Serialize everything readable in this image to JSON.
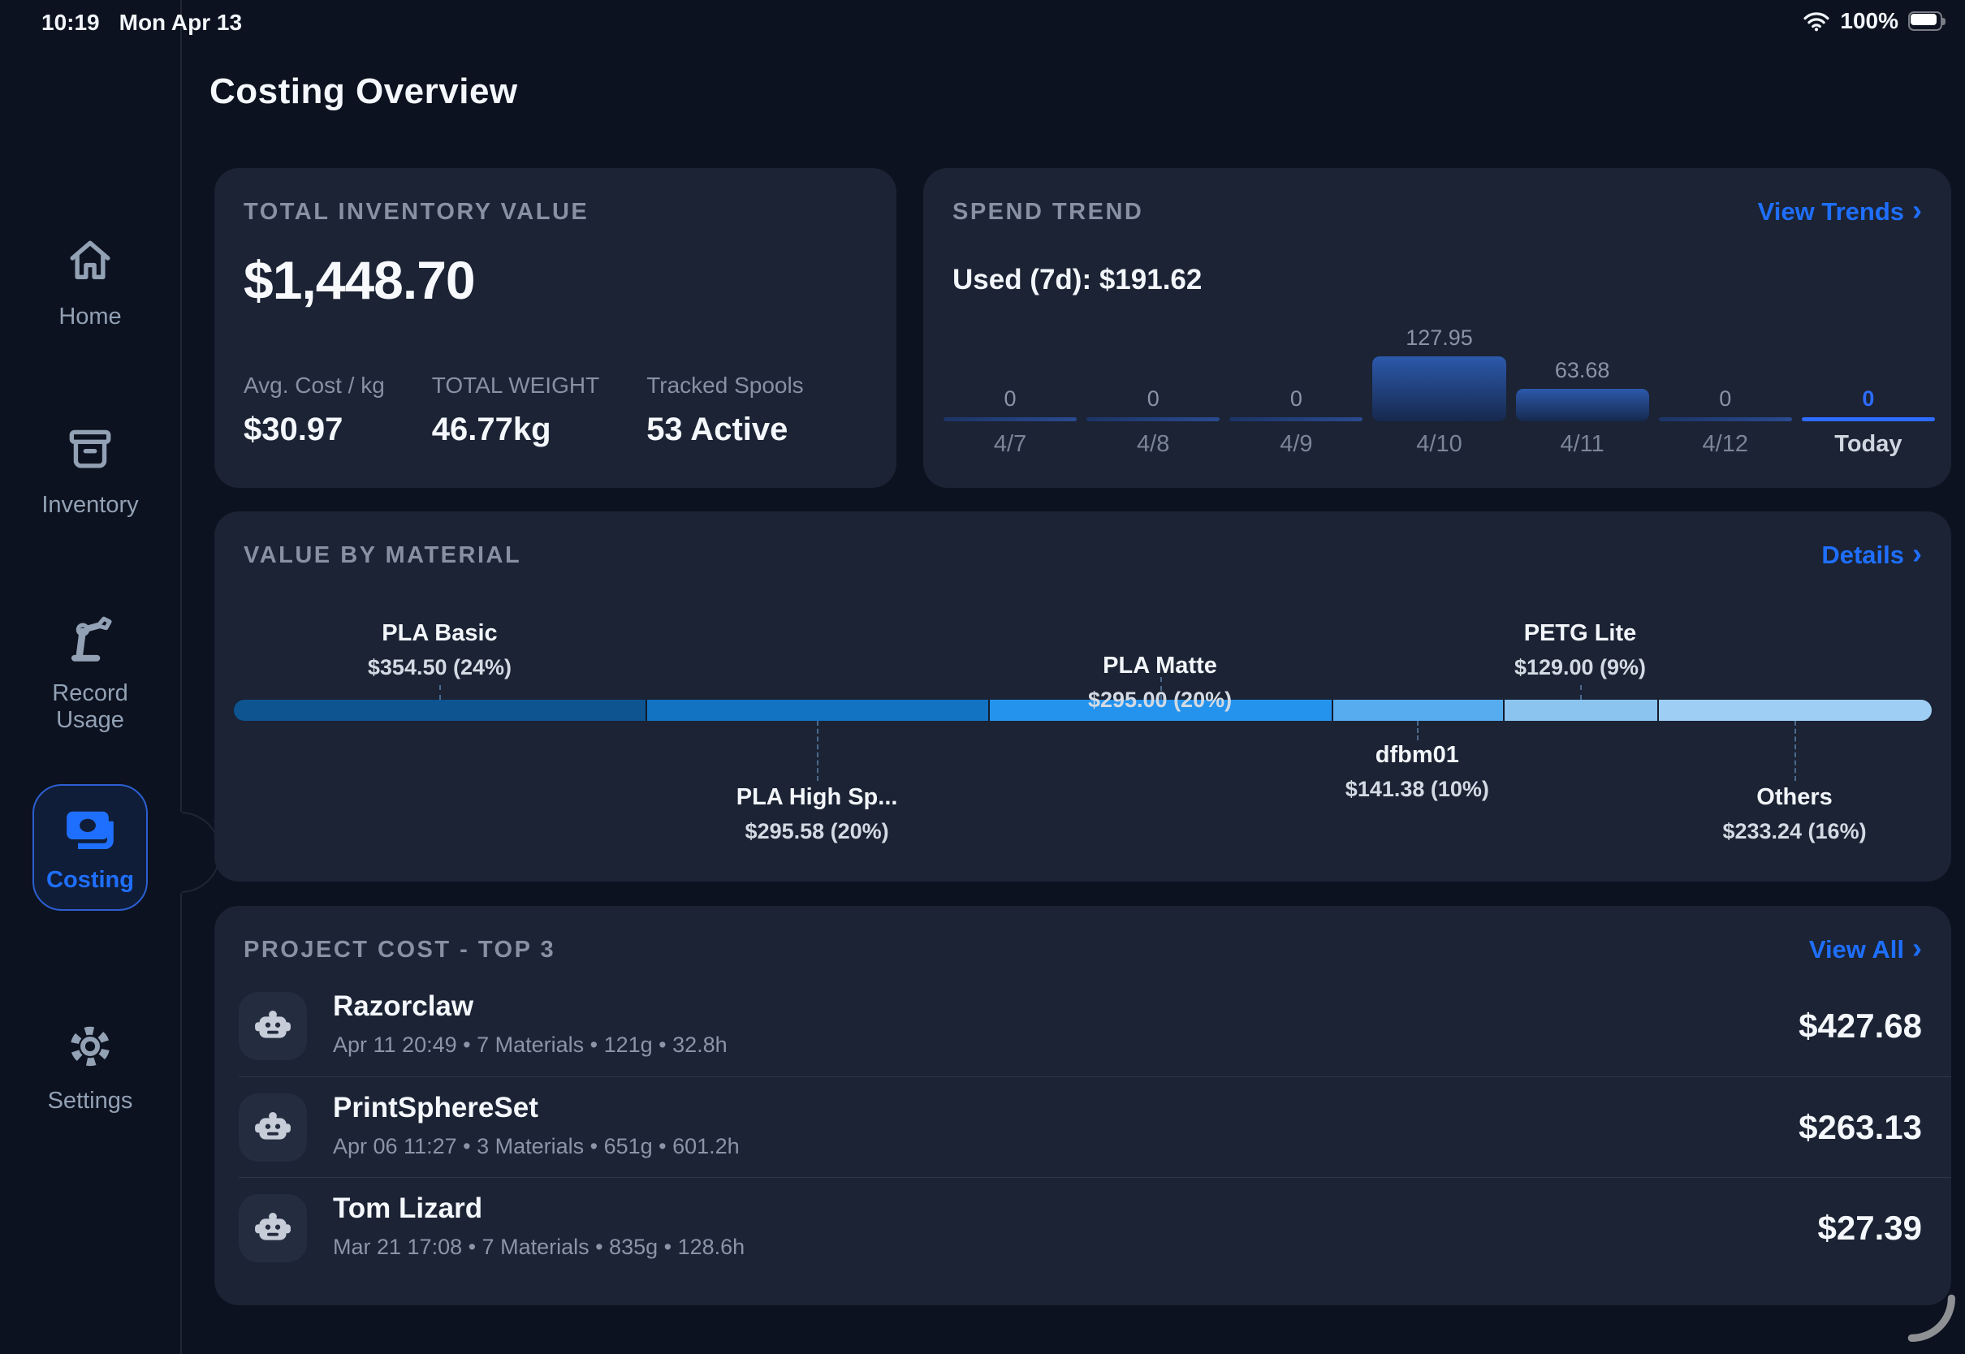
{
  "status_bar": {
    "time": "10:19",
    "date": "Mon Apr 13",
    "battery_percent": "100%"
  },
  "page_title": "Costing Overview",
  "sidebar": {
    "items": [
      {
        "id": "home",
        "label": "Home",
        "icon": "home-icon",
        "active": false
      },
      {
        "id": "inventory",
        "label": "Inventory",
        "icon": "archive-box-icon",
        "active": false
      },
      {
        "id": "record-usage",
        "label": "Record\nUsage",
        "icon": "robot-arm-icon",
        "active": false
      },
      {
        "id": "costing",
        "label": "Costing",
        "icon": "banknotes-icon",
        "active": true
      },
      {
        "id": "settings",
        "label": "Settings",
        "icon": "gear-icon",
        "active": false
      }
    ]
  },
  "cards": {
    "inventory": {
      "header": "TOTAL INVENTORY VALUE",
      "total_value": "$1,448.70",
      "stats": [
        {
          "label": "Avg. Cost / kg",
          "value": "$30.97"
        },
        {
          "label": "TOTAL WEIGHT",
          "value": "46.77kg"
        },
        {
          "label": "Tracked Spools",
          "value": "53 Active"
        }
      ]
    },
    "spend": {
      "header": "SPEND TREND",
      "link_label": "View Trends",
      "link_chevron": "›",
      "used_label": "Used (7d): $191.62",
      "chart_data": {
        "type": "bar",
        "x": [
          "4/7",
          "4/8",
          "4/9",
          "4/10",
          "4/11",
          "4/12",
          "Today"
        ],
        "values": [
          0,
          0,
          0,
          127.95,
          63.68,
          0,
          0
        ],
        "value_labels": [
          "0",
          "0",
          "0",
          "127.95",
          "63.68",
          "0",
          "0"
        ],
        "highlight_index": 6,
        "ylim": [
          0,
          130
        ],
        "bar_gradient_top": "#2c59ab",
        "bar_gradient_bottom": "#16294e",
        "highlight_color": "#2e6bff"
      }
    },
    "material": {
      "header": "VALUE BY MATERIAL",
      "link_label": "Details",
      "link_chevron": "›",
      "chart_data": {
        "type": "stacked-bar",
        "segments": [
          {
            "name": "PLA Basic",
            "display": "$354.50 (24%)",
            "value": 354.5,
            "pct": 24,
            "color": "#0d5491",
            "label_pos": "above-far"
          },
          {
            "name": "PLA High Sp...",
            "display": "$295.58 (20%)",
            "value": 295.58,
            "pct": 20,
            "color": "#1173c2",
            "label_pos": "below-far"
          },
          {
            "name": "PLA Matte",
            "display": "$295.00 (20%)",
            "value": 295.0,
            "pct": 20,
            "color": "#2493ee",
            "label_pos": "above-near"
          },
          {
            "name": "dfbm01",
            "display": "$141.38 (10%)",
            "value": 141.38,
            "pct": 10,
            "color": "#56acef",
            "label_pos": "below-near"
          },
          {
            "name": "PETG Lite",
            "display": "$129.00 (9%)",
            "value": 129.0,
            "pct": 9,
            "color": "#8cc4f0",
            "label_pos": "above-far"
          },
          {
            "name": "Others",
            "display": "$233.24 (16%)",
            "value": 233.24,
            "pct": 16,
            "color": "#9fcef4",
            "label_pos": "below-far"
          }
        ]
      }
    },
    "projects": {
      "header": "PROJECT COST - TOP 3",
      "link_label": "View All",
      "link_chevron": "›",
      "rows": [
        {
          "name": "Razorclaw",
          "meta": "Apr 11 20:49  •  7 Materials • 121g • 32.8h",
          "cost": "$427.68"
        },
        {
          "name": "PrintSphereSet",
          "meta": "Apr 06 11:27  •  3 Materials • 651g • 601.2h",
          "cost": "$263.13"
        },
        {
          "name": "Tom Lizard",
          "meta": "Mar 21 17:08  •  7 Materials • 835g • 128.6h",
          "cost": "$27.39"
        }
      ]
    }
  },
  "colors": {
    "accent": "#1f6fff",
    "page_bg": "#0c121f",
    "card_bg": "#1b2334"
  }
}
